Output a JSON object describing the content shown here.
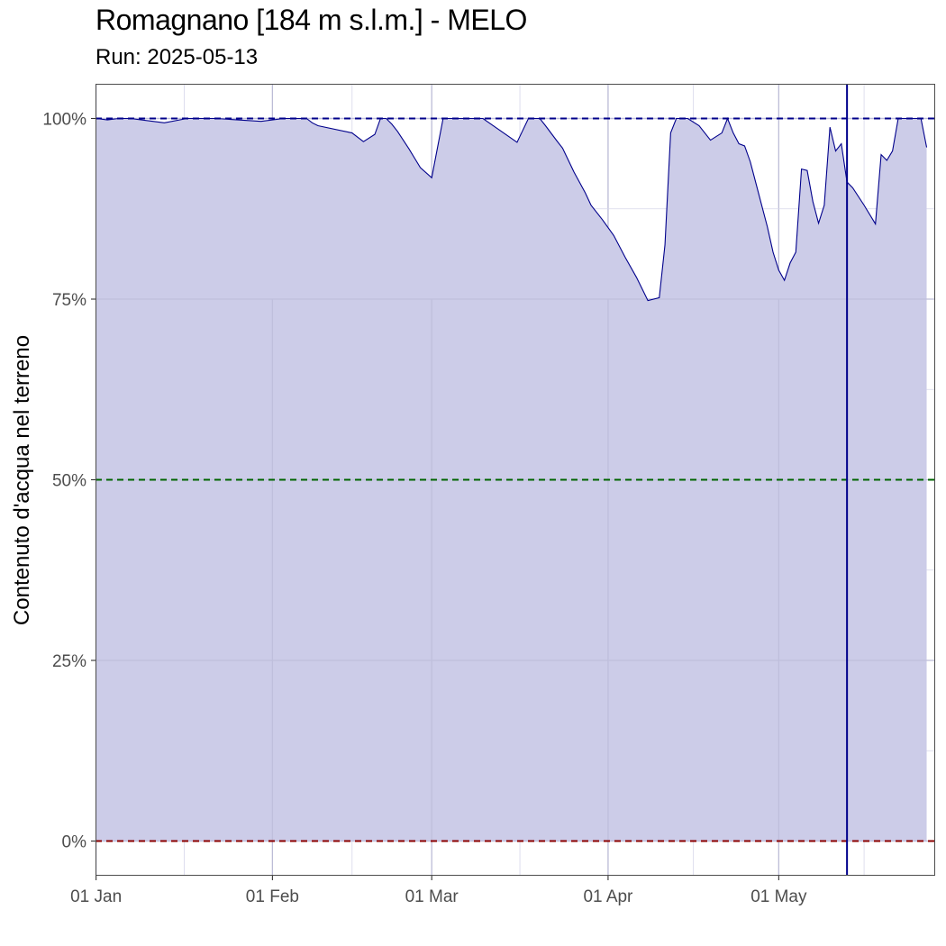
{
  "title": "Romagnano [184 m s.l.m.] - MELO",
  "subtitle": "Run: 2025-05-13",
  "colors": {
    "area_fill": "#cccce8",
    "line": "#00008b",
    "run_marker": "#00008b",
    "ref_100": "#00008b",
    "ref_50": "#006400",
    "ref_0": "#8b0000",
    "grid_major": "#bcbcd6",
    "grid_minor": "#d6d6ea",
    "panel_border": "#4d4d4d"
  },
  "chart_data": {
    "type": "area",
    "title": "Romagnano [184 m s.l.m.] - MELO",
    "subtitle": "Run: 2025-05-13",
    "xlabel": "",
    "ylabel": "Contenuto d'acqua nel terreno",
    "xlim": [
      "2025-01-01",
      "2025-05-28"
    ],
    "ylim": [
      0,
      100
    ],
    "x_ticks": [
      {
        "date": "2025-01-01",
        "label": "01 Jan"
      },
      {
        "date": "2025-02-01",
        "label": "01 Feb"
      },
      {
        "date": "2025-03-01",
        "label": "01 Mar"
      },
      {
        "date": "2025-04-01",
        "label": "01 Apr"
      },
      {
        "date": "2025-05-01",
        "label": "01 May"
      }
    ],
    "y_ticks": [
      {
        "value": 0,
        "label": "0%"
      },
      {
        "value": 25,
        "label": "25%"
      },
      {
        "value": 50,
        "label": "50%"
      },
      {
        "value": 75,
        "label": "75%"
      },
      {
        "value": 100,
        "label": "100%"
      }
    ],
    "reference_lines": [
      {
        "value": 100,
        "style": "dashed",
        "color": "#00008b"
      },
      {
        "value": 50,
        "style": "dashed",
        "color": "#006400"
      },
      {
        "value": 0,
        "style": "dashed",
        "color": "#8b0000"
      }
    ],
    "run_date": "2025-05-13",
    "grid": true,
    "series": [
      {
        "x": [
          "2025-01-01",
          "2025-01-03",
          "2025-01-05",
          "2025-01-07",
          "2025-01-11",
          "2025-01-13",
          "2025-01-17",
          "2025-01-18",
          "2025-01-20",
          "2025-01-22",
          "2025-01-30",
          "2025-02-03",
          "2025-02-07",
          "2025-02-08",
          "2025-02-09",
          "2025-02-15",
          "2025-02-17",
          "2025-02-19",
          "2025-02-20",
          "2025-02-21",
          "2025-02-22",
          "2025-02-23",
          "2025-02-24",
          "2025-02-25",
          "2025-02-26",
          "2025-02-27",
          "2025-03-01",
          "2025-03-03",
          "2025-03-05",
          "2025-03-07",
          "2025-03-08",
          "2025-03-09",
          "2025-03-10",
          "2025-03-16",
          "2025-03-18",
          "2025-03-20",
          "2025-03-21",
          "2025-03-23",
          "2025-03-24",
          "2025-03-26",
          "2025-03-28",
          "2025-03-29",
          "2025-03-31",
          "2025-04-02",
          "2025-04-04",
          "2025-04-06",
          "2025-04-08",
          "2025-04-10",
          "2025-04-11",
          "2025-04-12",
          "2025-04-13",
          "2025-04-14",
          "2025-04-15",
          "2025-04-17",
          "2025-04-19",
          "2025-04-21",
          "2025-04-22",
          "2025-04-23",
          "2025-04-24",
          "2025-04-25",
          "2025-04-26",
          "2025-04-27",
          "2025-04-28",
          "2025-04-29",
          "2025-04-30",
          "2025-05-01",
          "2025-05-02",
          "2025-05-03",
          "2025-05-04",
          "2025-05-05",
          "2025-05-06",
          "2025-05-07",
          "2025-05-08",
          "2025-05-09",
          "2025-05-10",
          "2025-05-11",
          "2025-05-12",
          "2025-05-13",
          "2025-05-14",
          "2025-05-16",
          "2025-05-18",
          "2025-05-19",
          "2025-05-20",
          "2025-05-21",
          "2025-05-22",
          "2025-05-23",
          "2025-05-25",
          "2025-05-26",
          "2025-05-27"
        ],
        "values": [
          100,
          99.8,
          100,
          100,
          99.6,
          99.4,
          100,
          100,
          100,
          100,
          99.6,
          100,
          100,
          99.4,
          99.0,
          98.0,
          96.8,
          97.8,
          100,
          100,
          99.2,
          98.2,
          97.0,
          95.8,
          94.5,
          93.2,
          91.8,
          100,
          100,
          100,
          100,
          100,
          100,
          96.7,
          100,
          100,
          99.0,
          96.9,
          95.9,
          92.6,
          89.7,
          88.0,
          86.0,
          83.8,
          80.8,
          78.0,
          74.8,
          75.2,
          82.5,
          98.0,
          100,
          100,
          100,
          99.0,
          97.0,
          98.0,
          100,
          98.0,
          96.5,
          96.2,
          94.0,
          91.0,
          88.0,
          85.0,
          81.5,
          79.0,
          77.6,
          80.0,
          81.5,
          93.0,
          92.8,
          88.5,
          85.5,
          88.0,
          98.8,
          95.5,
          96.5,
          91.2,
          90.4,
          88.0,
          85.4,
          95.0,
          94.2,
          95.5,
          100,
          100,
          100,
          100,
          96.0
        ]
      }
    ]
  }
}
